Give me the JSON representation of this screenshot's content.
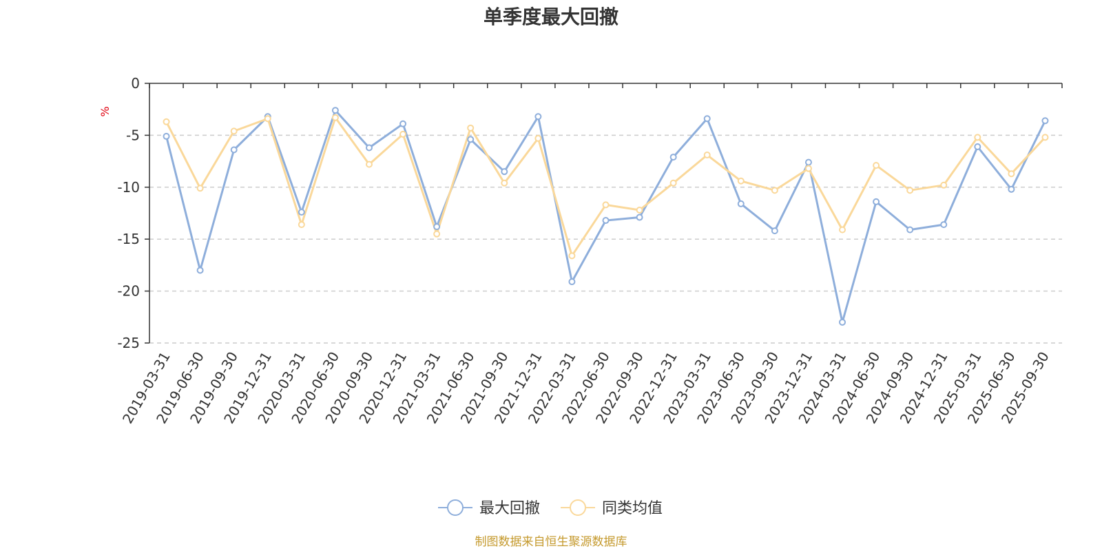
{
  "chart_data": {
    "type": "line",
    "title": "单季度最大回撤",
    "ylabel": "%",
    "ylim": [
      -25,
      0
    ],
    "yticks": [
      0,
      -5,
      -10,
      -15,
      -20,
      -25
    ],
    "grid": true,
    "legend_position": "bottom-center",
    "categories": [
      "2019-03-31",
      "2019-06-30",
      "2019-09-30",
      "2019-12-31",
      "2020-03-31",
      "2020-06-30",
      "2020-09-30",
      "2020-12-31",
      "2021-03-31",
      "2021-06-30",
      "2021-09-30",
      "2021-12-31",
      "2022-03-31",
      "2022-06-30",
      "2022-09-30",
      "2022-12-31",
      "2023-03-31",
      "2023-06-30",
      "2023-09-30",
      "2023-12-31",
      "2024-03-31",
      "2024-06-30",
      "2024-09-30",
      "2024-12-31",
      "2025-03-31",
      "2025-06-30",
      "2025-09-30"
    ],
    "series": [
      {
        "name": "最大回撤",
        "color": "#8eaedb",
        "values": [
          -5.1,
          -18.0,
          -6.4,
          -3.2,
          -12.4,
          -2.6,
          -6.2,
          -3.9,
          -13.8,
          -5.4,
          -8.5,
          -3.2,
          -19.1,
          -13.2,
          -12.9,
          -7.1,
          -3.4,
          -11.6,
          -14.2,
          -7.6,
          -23.0,
          -11.4,
          -14.1,
          -13.6,
          -6.1,
          -10.2,
          -3.6
        ]
      },
      {
        "name": "同类均值",
        "color": "#fad89a",
        "values": [
          -3.7,
          -10.1,
          -4.6,
          -3.4,
          -13.6,
          -3.3,
          -7.8,
          -4.9,
          -14.5,
          -4.3,
          -9.6,
          -5.3,
          -16.6,
          -11.7,
          -12.2,
          -9.6,
          -6.9,
          -9.4,
          -10.3,
          -8.2,
          -14.1,
          -7.9,
          -10.3,
          -9.8,
          -5.2,
          -8.7,
          -5.2
        ]
      }
    ]
  },
  "footer": {
    "source_text": "制图数据来自恒生聚源数据库"
  }
}
